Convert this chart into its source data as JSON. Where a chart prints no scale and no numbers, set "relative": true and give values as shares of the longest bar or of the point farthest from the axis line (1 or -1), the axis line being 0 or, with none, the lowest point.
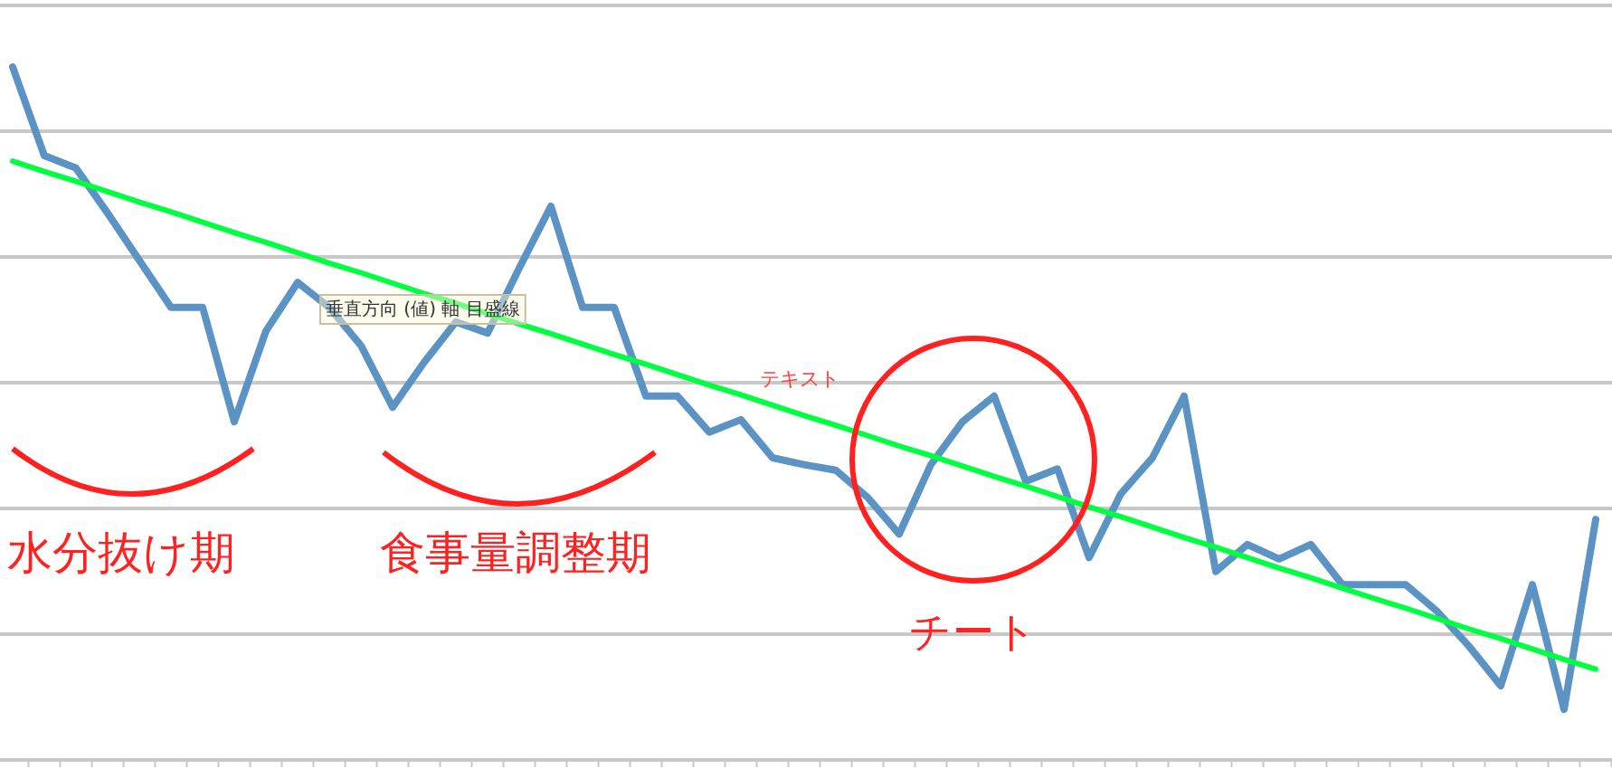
{
  "chart_data": {
    "type": "line",
    "relative": true,
    "grid": "y",
    "categories": [
      null,
      null,
      null,
      null,
      null,
      null,
      null,
      null,
      null,
      null,
      null,
      null,
      null,
      null,
      null,
      null,
      null,
      null,
      null,
      null,
      null,
      null,
      null,
      null,
      null,
      null,
      null,
      null,
      null,
      null,
      null,
      null,
      null,
      null,
      null,
      null,
      null,
      null,
      null,
      null,
      null,
      null,
      null,
      null,
      null,
      null,
      null,
      null,
      null,
      null,
      null
    ],
    "series": [
      {
        "color": "#5b93c4",
        "values": [
          1.0,
          0.872,
          0.854,
          0.789,
          0.721,
          0.653,
          0.653,
          0.488,
          0.619,
          0.689,
          0.653,
          0.598,
          0.509,
          0.574,
          0.632,
          0.616,
          0.71,
          0.799,
          0.653,
          0.653,
          0.525,
          0.525,
          0.473,
          0.491,
          0.436,
          0.426,
          0.418,
          0.379,
          0.326,
          0.426,
          0.488,
          0.525,
          0.402,
          0.42,
          0.292,
          0.384,
          0.436,
          0.525,
          0.272,
          0.311,
          0.29,
          0.311,
          0.253,
          0.253,
          0.253,
          0.214,
          0.164,
          0.107,
          0.253,
          0.073,
          0.347
        ]
      },
      {
        "type": "line",
        "color": "#00ff40",
        "values": [
          0.864,
          0.849,
          0.835,
          0.82,
          0.805,
          0.791,
          0.776,
          0.761,
          0.747,
          0.732,
          0.717,
          0.703,
          0.688,
          0.673,
          0.659,
          0.644,
          0.629,
          0.615,
          0.6,
          0.585,
          0.571,
          0.556,
          0.541,
          0.527,
          0.512,
          0.497,
          0.483,
          0.468,
          0.453,
          0.439,
          0.424,
          0.409,
          0.395,
          0.38,
          0.365,
          0.351,
          0.336,
          0.321,
          0.307,
          0.292,
          0.277,
          0.263,
          0.248,
          0.233,
          0.219,
          0.204,
          0.189,
          0.175,
          0.16,
          0.145,
          0.131
        ]
      }
    ],
    "annotations": [
      "水分抜け期",
      "食事量調整期",
      "チート",
      "テキスト",
      "垂直方向 (値) 軸 目盛線"
    ]
  }
}
